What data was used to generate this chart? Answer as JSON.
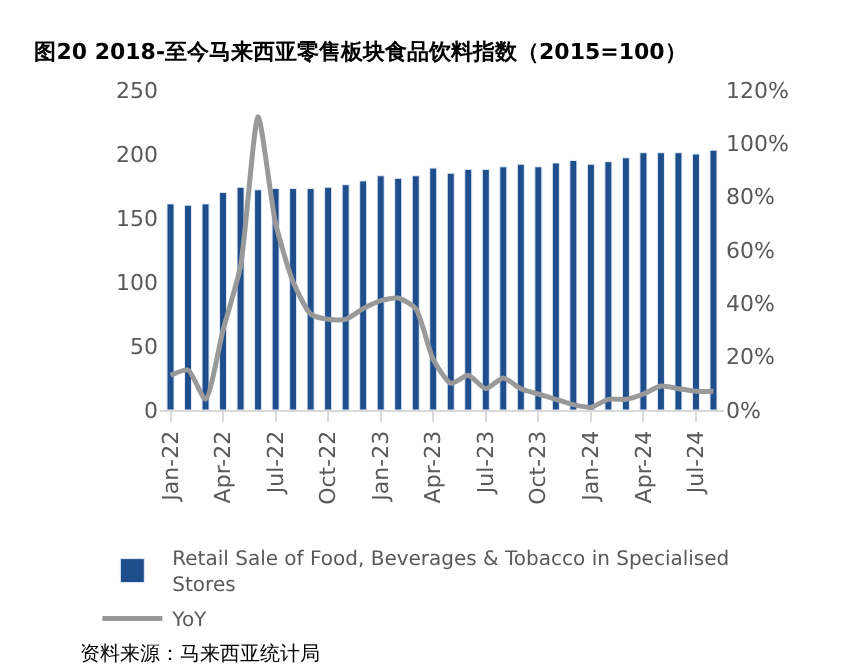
{
  "chart_data": {
    "type": "bar",
    "title": "图20 2018-至今马来西亚零售板块食品饮料指数（2015=100）",
    "categories": [
      "Jan-22",
      null,
      null,
      "Apr-22",
      null,
      null,
      "Jul-22",
      null,
      null,
      "Oct-22",
      null,
      null,
      "Jan-23",
      null,
      null,
      "Apr-23",
      null,
      null,
      "Jul-23",
      null,
      null,
      "Oct-23",
      null,
      null,
      "Jan-24",
      null,
      null,
      "Apr-24",
      null,
      null,
      "Jul-24",
      null
    ],
    "series": [
      {
        "name": "Retail Sale of Food, Beverages & Tobacco in Specialised Stores",
        "color": "#1f4e8c",
        "values": [
          161,
          160,
          161,
          170,
          174,
          172,
          173,
          173,
          173,
          174,
          176,
          179,
          183,
          181,
          183,
          189,
          185,
          188,
          188,
          190,
          192,
          190,
          193,
          195,
          192,
          194,
          197,
          201,
          201,
          201,
          200,
          203
        ]
      },
      {
        "name": "YoY",
        "type": "line",
        "axis": "y2",
        "color": "#999999",
        "values": [
          13,
          15,
          4,
          30,
          54,
          110,
          70,
          48,
          36,
          34,
          34,
          38,
          41,
          42,
          38,
          19,
          10,
          13,
          8,
          12,
          8,
          6,
          4,
          2,
          1,
          4,
          4,
          6,
          9,
          8,
          7,
          7
        ]
      }
    ],
    "ylim": [
      0,
      250
    ],
    "yticks": [
      0,
      50,
      100,
      150,
      200,
      250
    ],
    "y2lim": [
      0,
      120
    ],
    "y2ticks": [
      {
        "value": 0,
        "label": "0%"
      },
      {
        "value": 20,
        "label": "20%"
      },
      {
        "value": 40,
        "label": "40%"
      },
      {
        "value": 60,
        "label": "60%"
      },
      {
        "value": 80,
        "label": "80%"
      },
      {
        "value": 100,
        "label": "100%"
      },
      {
        "value": 120,
        "label": "120%"
      }
    ],
    "legend": "bottom",
    "marker": "none",
    "line_style": "solid",
    "annotations": [
      "资料来源：马来西亚统计局"
    ]
  }
}
